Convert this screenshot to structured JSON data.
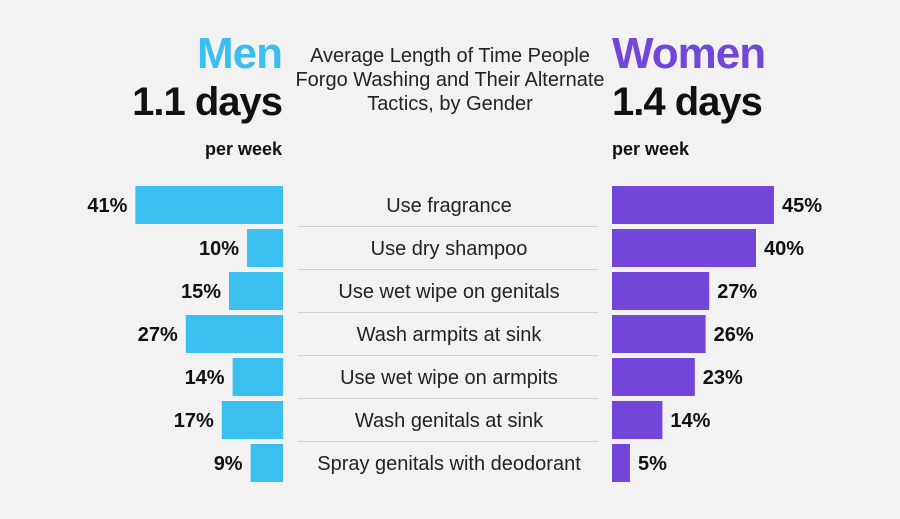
{
  "title": "Average Length of Time People Forgo Washing and Their Alternate Tactics, by Gender",
  "men": {
    "label": "Men",
    "days": "1.1 days",
    "per_week": "per week",
    "color": "#3bbfef"
  },
  "women": {
    "label": "Women",
    "days": "1.4 days",
    "per_week": "per week",
    "color": "#7146d8"
  },
  "chart_data": {
    "type": "bar",
    "title": "Average Length of Time People Forgo Washing and Their Alternate Tactics, by Gender",
    "categories": [
      "Use fragrance",
      "Use dry shampoo",
      "Use wet wipe on genitals",
      "Wash armpits at sink",
      "Use wet wipe on armpits",
      "Wash genitals at sink",
      "Spray genitals with deodorant"
    ],
    "series": [
      {
        "name": "Men",
        "values": [
          41,
          10,
          15,
          27,
          14,
          17,
          9
        ],
        "labels": [
          "41%",
          "10%",
          "15%",
          "27%",
          "14%",
          "17%",
          "9%"
        ]
      },
      {
        "name": "Women",
        "values": [
          45,
          40,
          27,
          26,
          23,
          14,
          5
        ],
        "labels": [
          "45%",
          "40%",
          "27%",
          "26%",
          "23%",
          "14%",
          "5%"
        ]
      }
    ],
    "xlabel": "",
    "ylabel": "",
    "grid": false,
    "legend": "top"
  }
}
